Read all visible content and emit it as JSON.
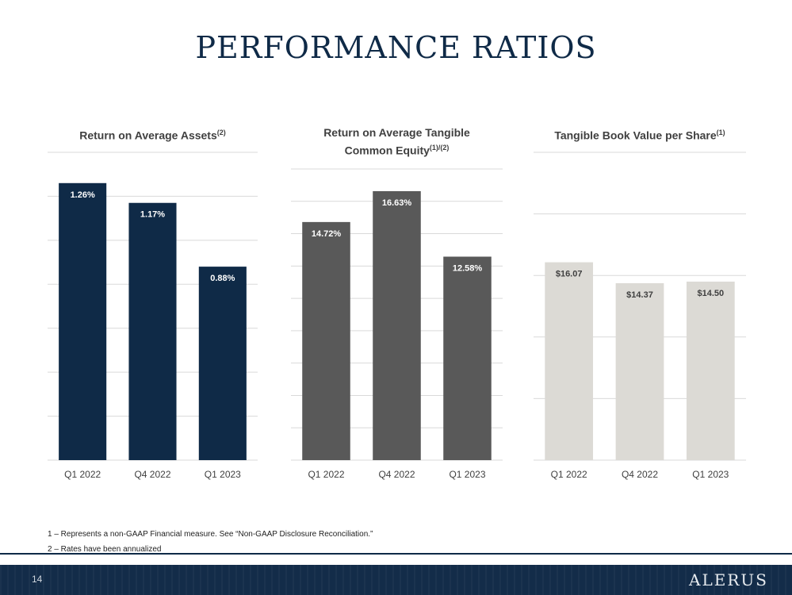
{
  "title": "PERFORMANCE RATIOS",
  "chart_data": [
    {
      "type": "bar",
      "title": "Return on Average Assets",
      "title_sup": "(2)",
      "categories": [
        "Q1 2022",
        "Q4 2022",
        "Q1 2023"
      ],
      "values": [
        1.26,
        1.17,
        0.88
      ],
      "labels": [
        "1.26%",
        "1.17%",
        "0.88%"
      ],
      "ylim": [
        0,
        1.4
      ],
      "grid": true,
      "color": "#0f2a47",
      "label_color": "#ffffff"
    },
    {
      "type": "bar",
      "title": "Return on Average Tangible Common Equity",
      "title_line1": "Return on Average Tangible",
      "title_line2": "Common Equity",
      "title_sup": "(1)/(2)",
      "categories": [
        "Q1 2022",
        "Q4 2022",
        "Q1 2023"
      ],
      "values": [
        14.72,
        16.63,
        12.58
      ],
      "labels": [
        "14.72%",
        "16.63%",
        "12.58%"
      ],
      "ylim": [
        0,
        18
      ],
      "grid": true,
      "color": "#595959",
      "label_color": "#ffffff"
    },
    {
      "type": "bar",
      "title": "Tangible Book Value per Share",
      "title_sup": "(1)",
      "categories": [
        "Q1 2022",
        "Q4 2022",
        "Q1 2023"
      ],
      "values": [
        16.07,
        14.37,
        14.5
      ],
      "labels": [
        "$16.07",
        "$14.37",
        "$14.50"
      ],
      "ylim": [
        0,
        25
      ],
      "grid": true,
      "color": "#dcdad5",
      "label_color": "#404040"
    }
  ],
  "footnotes": [
    "1 – Represents a non-GAAP Financial measure. See “Non-GAAP Disclosure Reconciliation.”",
    "2 – Rates have been annualized"
  ],
  "footer": {
    "page_number": "14",
    "logo": "ALERUS"
  },
  "colors": {
    "navy": "#0f2a47",
    "gray": "#595959",
    "light": "#dcdad5",
    "axis_text": "#404040",
    "grid": "#d9d9d9"
  }
}
